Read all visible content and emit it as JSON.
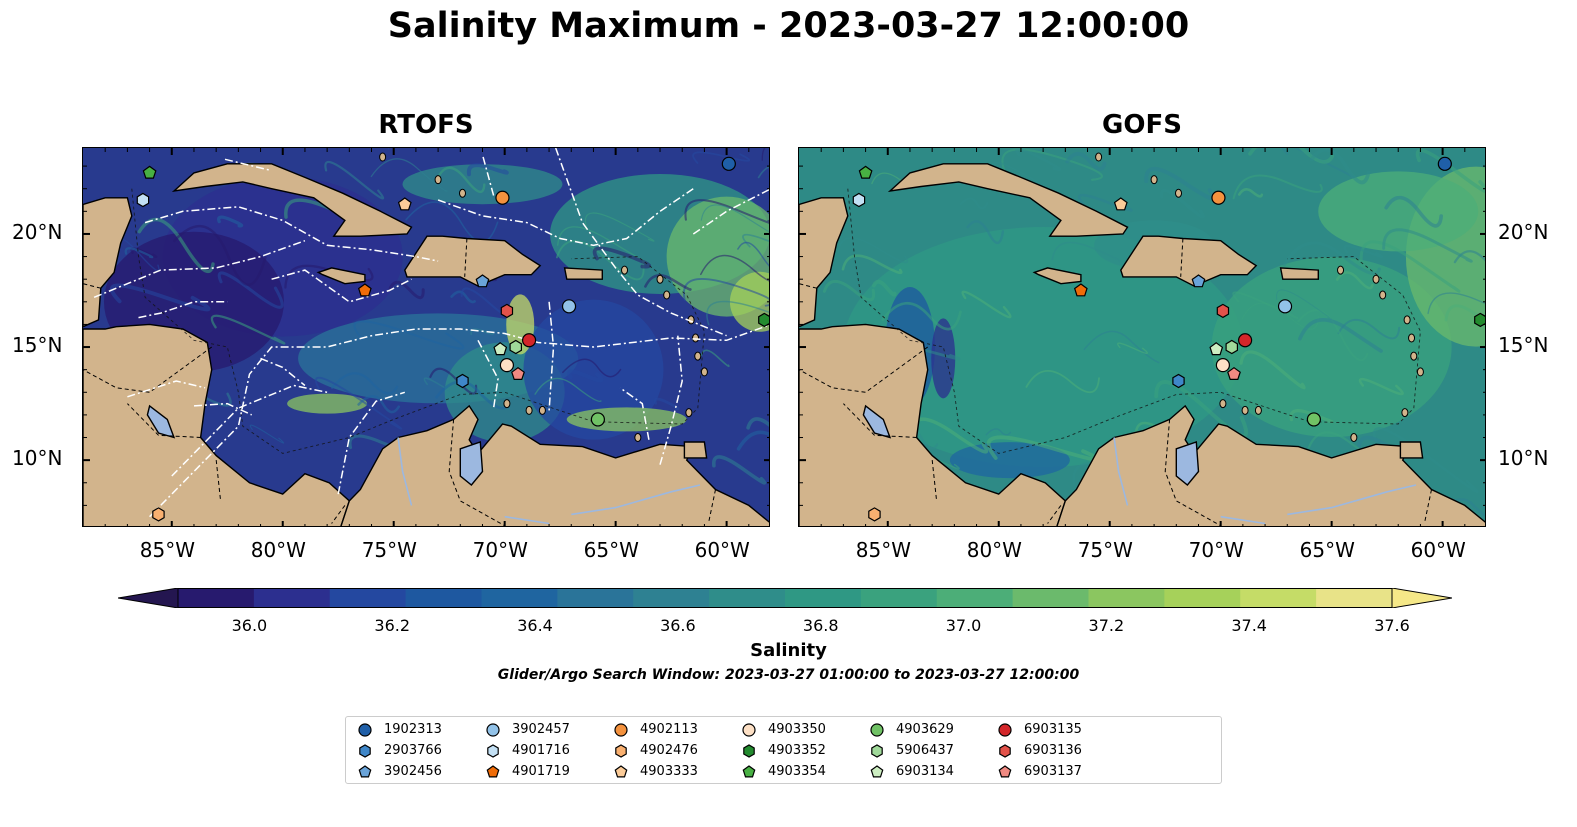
{
  "title": "Salinity Maximum - 2023-03-27 12:00:00",
  "panels": [
    {
      "title": "RTOFS",
      "variant": "rtofs"
    },
    {
      "title": "GOFS",
      "variant": "gofs"
    }
  ],
  "axes": {
    "lon_ticks": [
      "85°W",
      "80°W",
      "75°W",
      "70°W",
      "65°W",
      "60°W"
    ],
    "lon_values": [
      -85,
      -80,
      -75,
      -70,
      -65,
      -60
    ],
    "lat_ticks": [
      "20°N",
      "15°N",
      "10°N"
    ],
    "lat_values": [
      20,
      15,
      10
    ],
    "lon_range": [
      -89,
      -58
    ],
    "lat_range": [
      7,
      23.8
    ]
  },
  "colorbar": {
    "label": "Salinity",
    "ticks": [
      "36.0",
      "36.2",
      "36.4",
      "36.6",
      "36.8",
      "37.0",
      "37.2",
      "37.4",
      "37.6"
    ],
    "range": [
      35.9,
      37.6
    ],
    "step": 0.1,
    "colors": [
      "#271a6e",
      "#2c2f8f",
      "#2448a0",
      "#1e58a0",
      "#1f65a0",
      "#2a7499",
      "#2e8192",
      "#2f8d8a",
      "#2f9884",
      "#3aa27e",
      "#4cae78",
      "#6bba6c",
      "#8bc660",
      "#a6d15a",
      "#c5dc67",
      "#e8e388"
    ],
    "under_color": "#241650",
    "over_color": "#f5e888"
  },
  "search_window": "Glider/Argo Search Window: 2023-03-27 01:00:00 to 2023-03-27 12:00:00",
  "land_color": "#d2b48c",
  "lake_color": "#9cb8e0",
  "rtofs_ocean_color": "#283a8e",
  "gofs_ocean_color": "#2e8a86",
  "floats": [
    {
      "id": "1902313",
      "shape": "circle",
      "color": "#1f5fa8",
      "lon": -59.9,
      "lat": 23.1
    },
    {
      "id": "2903766",
      "shape": "hexagon",
      "color": "#3f87c9",
      "lon": -71.9,
      "lat": 13.5
    },
    {
      "id": "3902456",
      "shape": "pentagon",
      "color": "#6aa4d9",
      "lon": -71.0,
      "lat": 17.9
    },
    {
      "id": "3902457",
      "shape": "circle",
      "color": "#92c2e8",
      "lon": -67.1,
      "lat": 16.8
    },
    {
      "id": "4901716",
      "shape": "hexagon",
      "color": "#c3e0f4",
      "lon": -86.3,
      "lat": 21.5
    },
    {
      "id": "4901719",
      "shape": "pentagon",
      "color": "#f06c08",
      "lon": -76.3,
      "lat": 17.5
    },
    {
      "id": "4902113",
      "shape": "circle",
      "color": "#f4923e",
      "lon": -70.1,
      "lat": 21.6
    },
    {
      "id": "4902476",
      "shape": "hexagon",
      "color": "#f9b070",
      "lon": -85.6,
      "lat": 7.6
    },
    {
      "id": "4903333",
      "shape": "pentagon",
      "color": "#fbcb98",
      "lon": -74.5,
      "lat": 21.3
    },
    {
      "id": "4903350",
      "shape": "circle",
      "color": "#fde0c5",
      "lon": -69.9,
      "lat": 14.2
    },
    {
      "id": "4903352",
      "shape": "hexagon",
      "color": "#238b2f",
      "lon": -58.3,
      "lat": 16.2
    },
    {
      "id": "4903354",
      "shape": "pentagon",
      "color": "#48b043",
      "lon": -86.0,
      "lat": 22.7
    },
    {
      "id": "4903629",
      "shape": "circle",
      "color": "#70c265",
      "lon": -65.8,
      "lat": 11.8
    },
    {
      "id": "5906437",
      "shape": "hexagon",
      "color": "#a0d99a",
      "lon": -69.5,
      "lat": 15.0
    },
    {
      "id": "6903134",
      "shape": "pentagon",
      "color": "#cdeec2",
      "lon": -70.2,
      "lat": 14.9
    },
    {
      "id": "6903135",
      "shape": "circle",
      "color": "#d3262a",
      "lon": -68.9,
      "lat": 15.3
    },
    {
      "id": "6903136",
      "shape": "hexagon",
      "color": "#e3524a",
      "lon": -69.9,
      "lat": 16.6
    },
    {
      "id": "6903137",
      "shape": "pentagon",
      "color": "#f08a82",
      "lon": -69.4,
      "lat": 13.8
    }
  ]
}
